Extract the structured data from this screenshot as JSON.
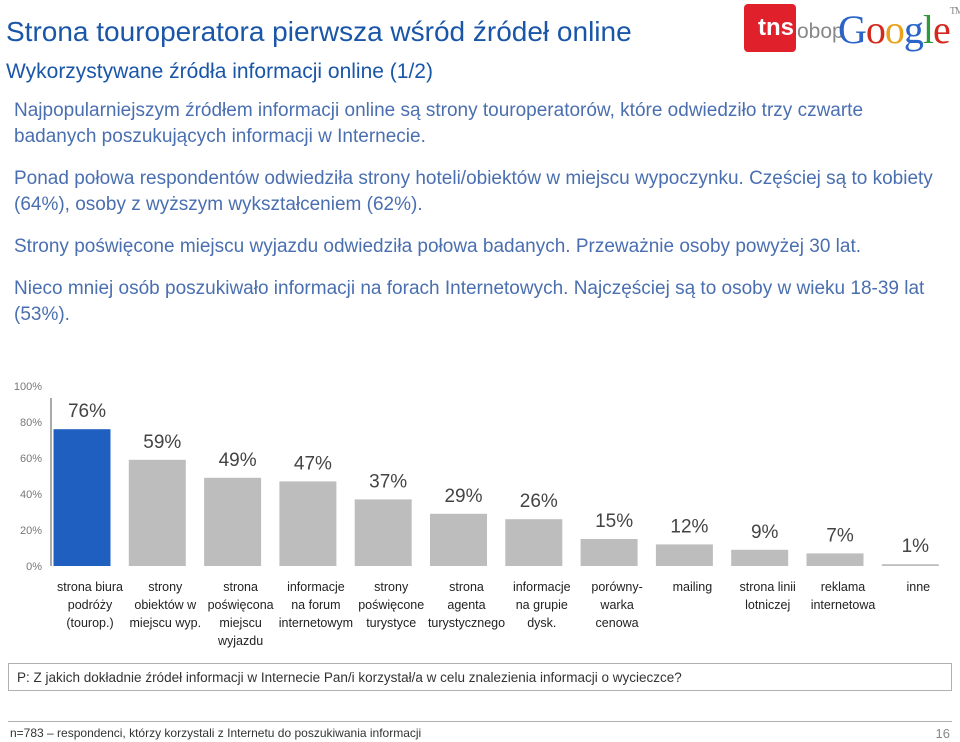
{
  "header": {
    "title": "Strona touroperatora pierwsza wśród źródeł online",
    "subtitle": "Wykorzystywane źródła informacji online (1/2)"
  },
  "logos": {
    "tns": "tns",
    "obop": "obop",
    "google": [
      "G",
      "o",
      "o",
      "g",
      "l",
      "e"
    ],
    "tm": "TM"
  },
  "paragraphs": [
    "Najpopularniejszym źródłem informacji online są strony touroperatorów, które odwiedziło trzy czwarte badanych poszukujących informacji w Internecie.",
    "Ponad połowa respondentów odwiedziła strony hoteli/obiektów w miejscu wypoczynku. Częściej są to kobiety (64%), osoby z wyższym wykształceniem (62%).",
    "Strony poświęcone miejscu wyjazdu odwiedziła połowa badanych. Przeważnie osoby powyżej 30 lat.",
    "Nieco mniej osób poszukiwało informacji na forach Internetowych. Najczęściej są to osoby w wieku 18-39 lat (53%)."
  ],
  "chart_data": {
    "type": "bar",
    "categories": [
      [
        "strona biura",
        "podróży",
        "(tourop.)"
      ],
      [
        "strony",
        "obiektów w",
        "miejscu wyp."
      ],
      [
        "strona",
        "poświęcona",
        "miejscu",
        "wyjazdu"
      ],
      [
        "informacje",
        "na forum",
        "internetowym"
      ],
      [
        "strony",
        "poświęcone",
        "turystyce"
      ],
      [
        "strona",
        "agenta",
        "turystycznego"
      ],
      [
        "informacje",
        "na grupie",
        "dysk."
      ],
      [
        "porówny-",
        "warka",
        "cenowa"
      ],
      [
        "mailing"
      ],
      [
        "strona linii",
        "lotniczej"
      ],
      [
        "reklama",
        "internetowa"
      ],
      [
        "inne"
      ]
    ],
    "values": [
      76,
      59,
      49,
      47,
      37,
      29,
      26,
      15,
      12,
      9,
      7,
      1
    ],
    "data_labels": [
      "76%",
      "59%",
      "49%",
      "47%",
      "37%",
      "29%",
      "26%",
      "15%",
      "12%",
      "9%",
      "7%",
      "1%"
    ],
    "y_ticks": [
      "0%",
      "20%",
      "40%",
      "60%",
      "80%",
      "100%"
    ],
    "ylim": [
      0,
      100
    ],
    "highlight_color": "#1f5fc0",
    "bar_color": "#bdbdbd",
    "grid": false
  },
  "footnote": "P: Z jakich dokładnie źródeł informacji w Internecie Pan/i korzystał/a w celu znalezienia informacji o wycieczce?",
  "footer": {
    "note": "n=783 – respondenci, którzy korzystali z Internetu do poszukiwania informacji",
    "page": "16"
  }
}
